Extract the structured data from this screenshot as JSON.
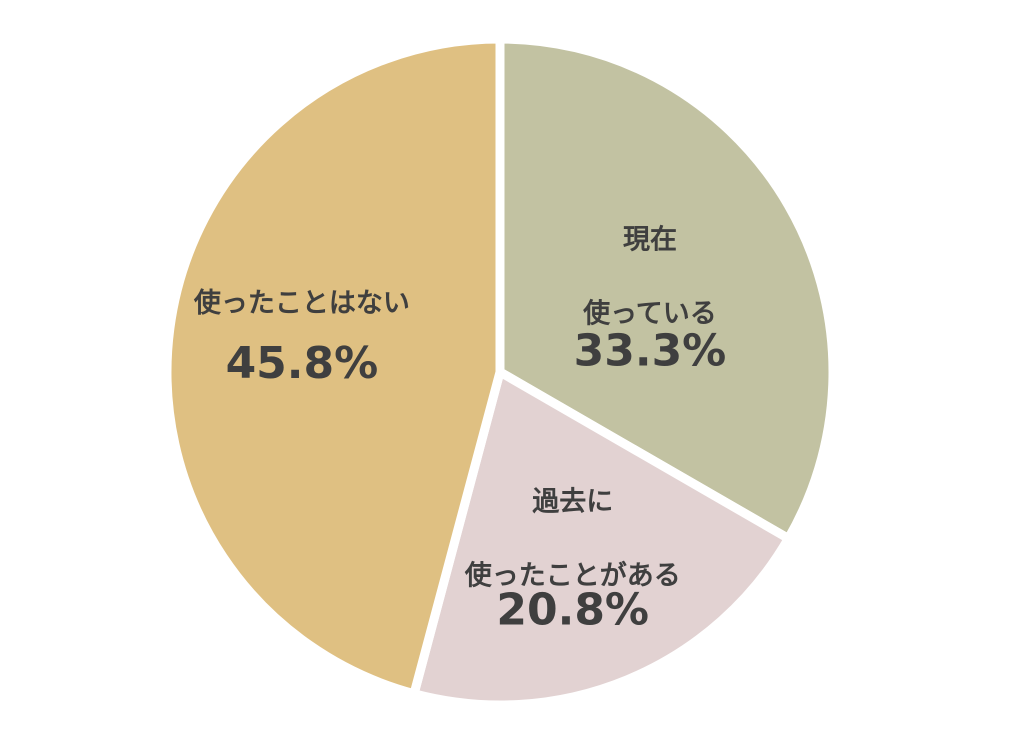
{
  "chart_data": {
    "type": "pie",
    "title": "",
    "start": "12 o'clock",
    "direction": "clockwise",
    "slices": [
      {
        "label": [
          "現在",
          "使っている"
        ],
        "value": 33.3,
        "value_label": "33.3%",
        "color": "#c2c2a2"
      },
      {
        "label": [
          "過去に",
          "使ったことがある"
        ],
        "value": 20.8,
        "value_label": "20.8%",
        "color": "#e2d2d2"
      },
      {
        "label": [
          "使ったことはない"
        ],
        "value": 45.8,
        "value_label": "45.8%",
        "color": "#dfc082"
      }
    ],
    "legend": "none"
  }
}
